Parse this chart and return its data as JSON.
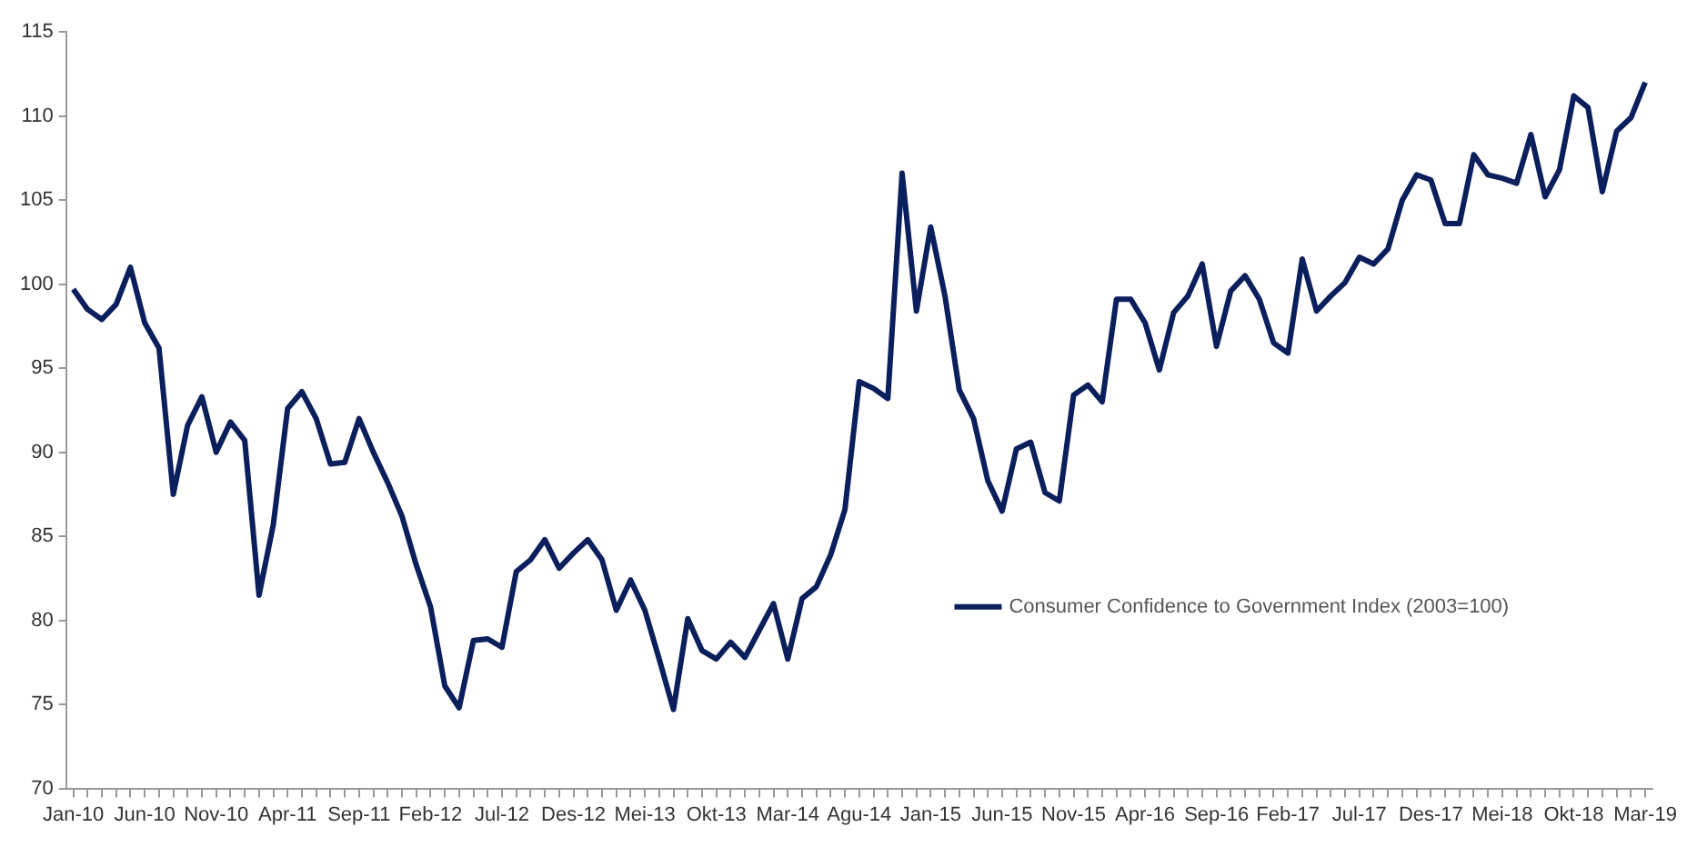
{
  "chart_data": {
    "type": "line",
    "categories": [
      "Jan-10",
      null,
      null,
      null,
      null,
      "Jun-10",
      null,
      null,
      null,
      null,
      "Nov-10",
      null,
      null,
      null,
      null,
      "Apr-11",
      null,
      null,
      null,
      null,
      "Sep-11",
      null,
      null,
      null,
      null,
      "Feb-12",
      null,
      null,
      null,
      null,
      "Jul-12",
      null,
      null,
      null,
      null,
      "Des-12",
      null,
      null,
      null,
      null,
      "Mei-13",
      null,
      null,
      null,
      null,
      "Okt-13",
      null,
      null,
      null,
      null,
      "Mar-14",
      null,
      null,
      null,
      null,
      "Agu-14",
      null,
      null,
      null,
      null,
      "Jan-15",
      null,
      null,
      null,
      null,
      "Jun-15",
      null,
      null,
      null,
      null,
      "Nov-15",
      null,
      null,
      null,
      null,
      "Apr-16",
      null,
      null,
      null,
      null,
      "Sep-16",
      null,
      null,
      null,
      null,
      "Feb-17",
      null,
      null,
      null,
      null,
      "Jul-17",
      null,
      null,
      null,
      null,
      "Des-17",
      null,
      null,
      null,
      null,
      "Mei-18",
      null,
      null,
      null,
      null,
      "Okt-18",
      null,
      null,
      null,
      null,
      "Mar-19"
    ],
    "series": [
      {
        "name": "Consumer Confidence to Government Index (2003=100)",
        "color": "#0b1f5c",
        "values": [
          99.7,
          98.5,
          97.9,
          98.8,
          101.0,
          97.7,
          96.2,
          87.5,
          91.6,
          93.3,
          90.0,
          91.8,
          90.7,
          81.5,
          85.7,
          92.6,
          93.6,
          92.0,
          89.3,
          89.4,
          92.0,
          90.0,
          88.2,
          86.2,
          83.3,
          80.8,
          76.1,
          74.8,
          78.8,
          78.9,
          78.4,
          82.9,
          83.6,
          84.8,
          83.1,
          84.0,
          84.8,
          83.6,
          80.6,
          82.4,
          80.6,
          77.7,
          74.7,
          80.1,
          78.2,
          77.7,
          78.7,
          77.8,
          79.4,
          81.0,
          77.7,
          81.3,
          82.0,
          83.9,
          86.6,
          94.2,
          93.8,
          93.2,
          106.6,
          98.4,
          103.4,
          99.3,
          93.7,
          92.0,
          88.3,
          86.5,
          90.2,
          90.6,
          87.6,
          87.1,
          93.4,
          94.0,
          93.0,
          99.1,
          99.1,
          97.7,
          94.9,
          98.3,
          99.3,
          101.2,
          96.3,
          99.6,
          100.5,
          99.1,
          96.5,
          95.9,
          101.5,
          98.4,
          99.3,
          100.1,
          101.6,
          101.2,
          102.1,
          105.0,
          106.5,
          106.2,
          103.6,
          103.6,
          107.7,
          106.5,
          106.3,
          106.0,
          108.9,
          105.2,
          106.8,
          111.2,
          110.5,
          105.5,
          109.1,
          109.9,
          112.0
        ]
      }
    ],
    "ylim": [
      70,
      115
    ],
    "yticks": [
      70,
      75,
      80,
      85,
      90,
      95,
      100,
      105,
      110,
      115
    ],
    "grid": false,
    "legend": "right",
    "marker": "none",
    "line_style": "solid"
  }
}
